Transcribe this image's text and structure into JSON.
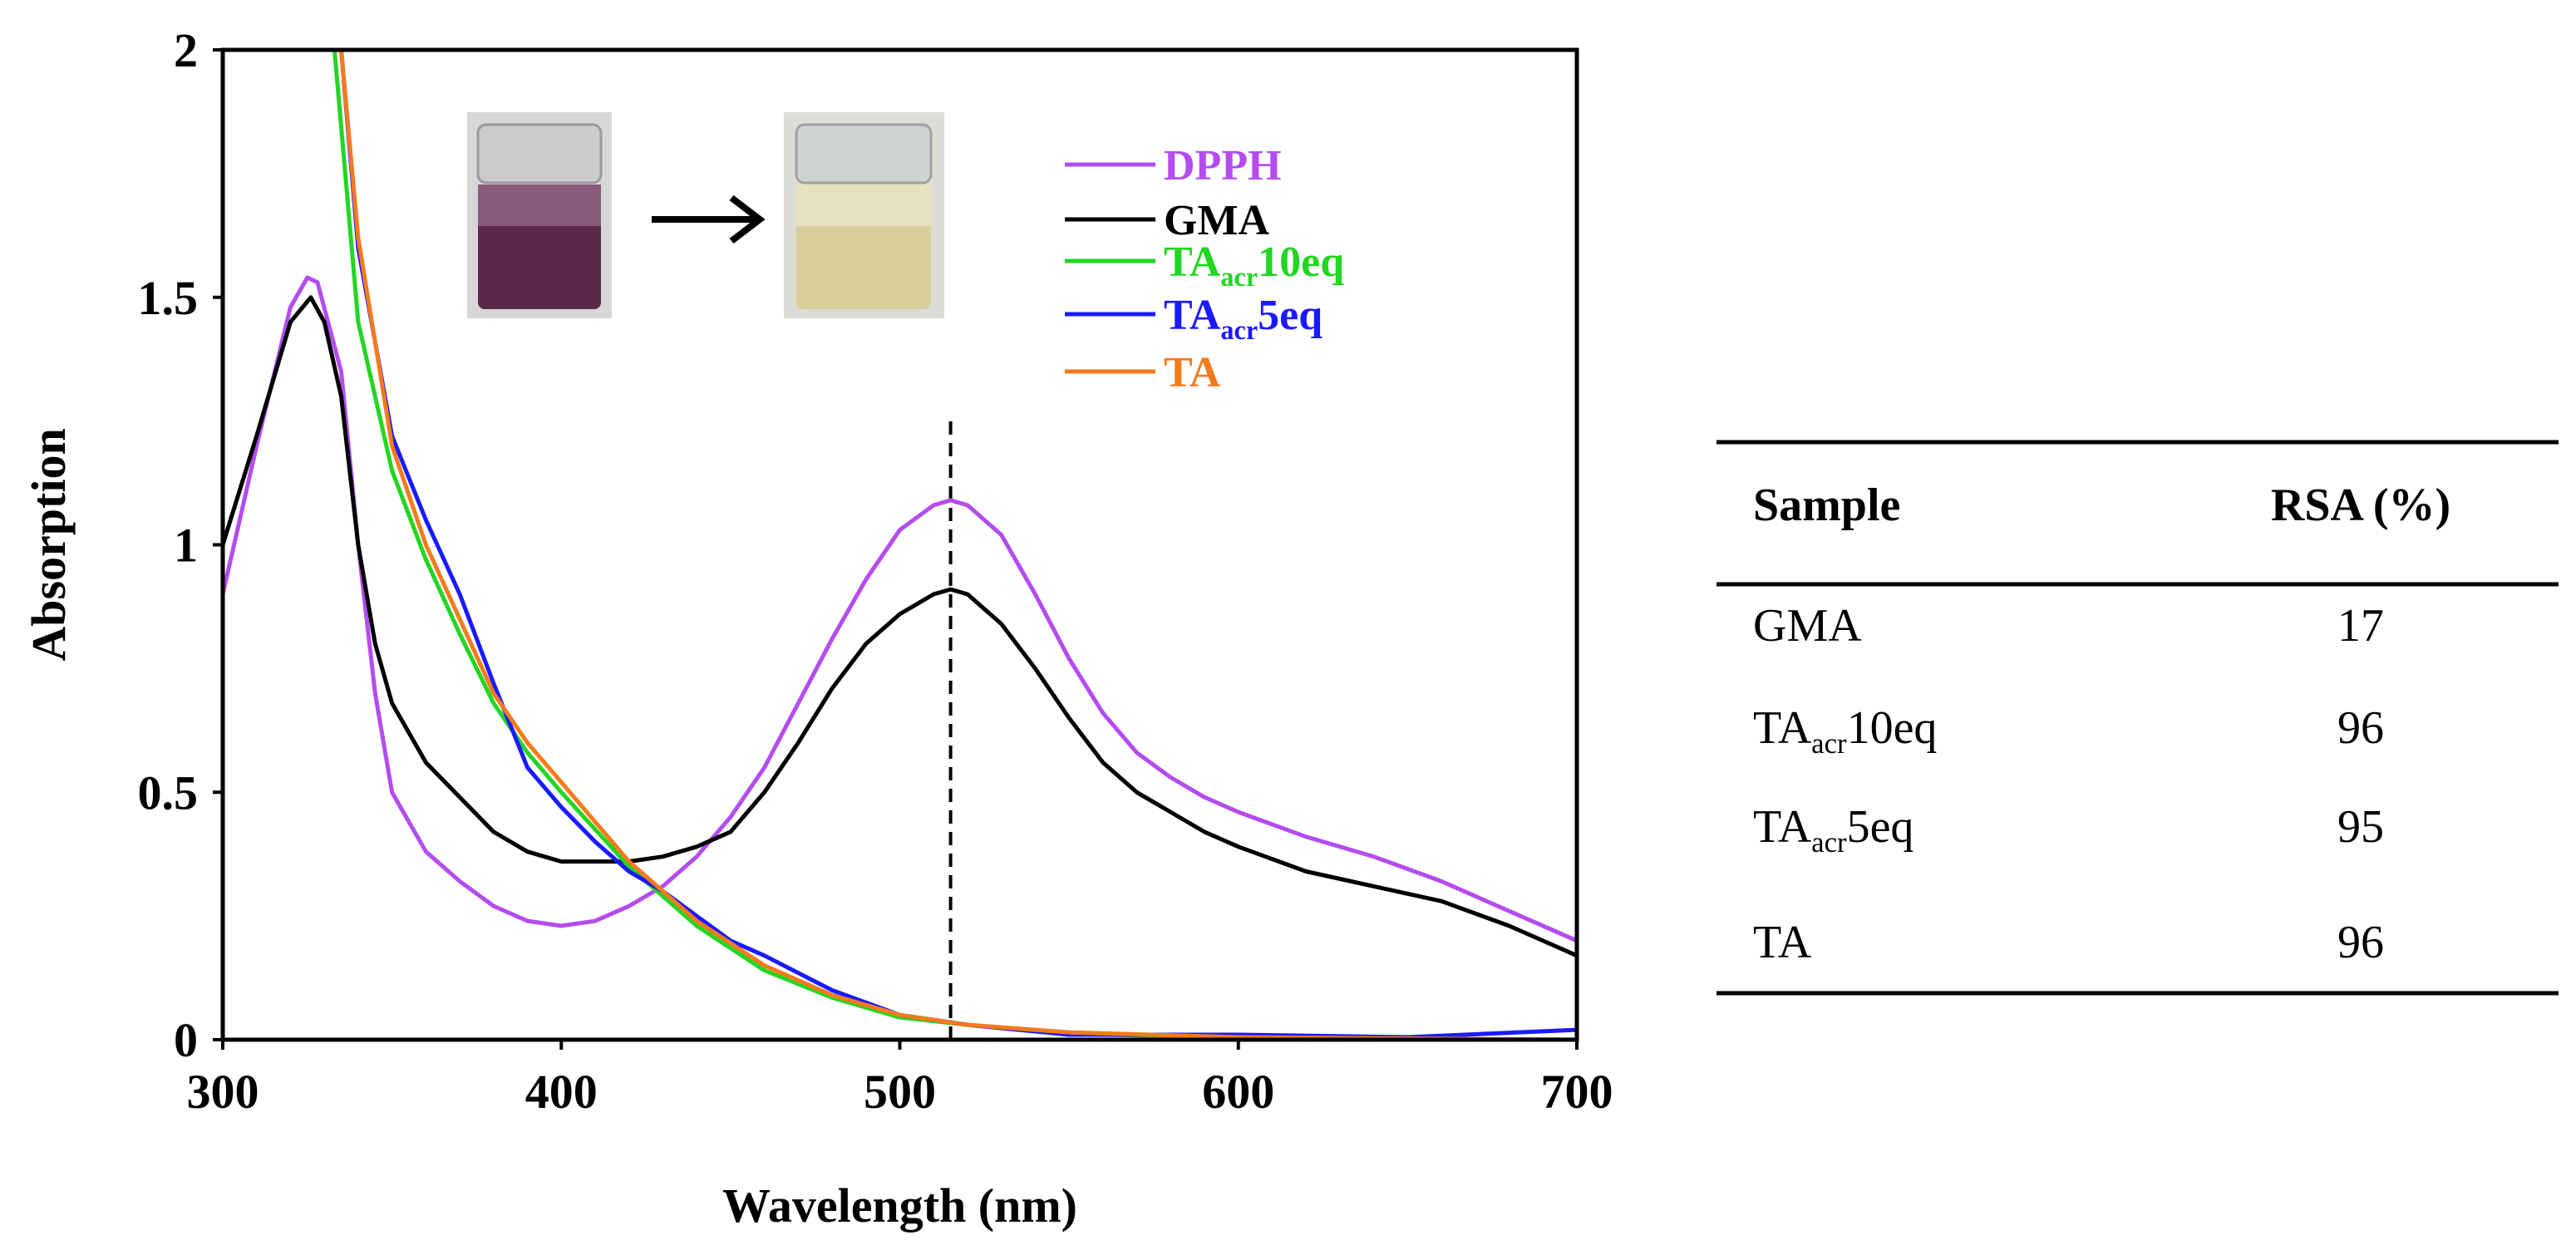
{
  "chart_data": {
    "type": "line",
    "xlabel": "Wavelength (nm)",
    "ylabel": "Absorption",
    "xlim": [
      300,
      700
    ],
    "ylim": [
      0,
      2
    ],
    "xticks": [
      "300",
      "400",
      "500",
      "600",
      "700"
    ],
    "yticks": [
      "0",
      "0.5",
      "1",
      "1.5",
      "2"
    ],
    "grid": false,
    "legend_position": "top-right",
    "reference_line": {
      "x": 515,
      "style": "dashed",
      "color": "#000000"
    },
    "series": [
      {
        "name": "DPPH",
        "label": {
          "main": "DPPH",
          "sub": "",
          "rest": ""
        },
        "color": "#b44cf0",
        "x": [
          300,
          310,
          320,
          325,
          328,
          335,
          340,
          345,
          350,
          360,
          370,
          380,
          390,
          400,
          410,
          420,
          430,
          440,
          450,
          460,
          470,
          480,
          490,
          500,
          510,
          515,
          520,
          530,
          540,
          550,
          560,
          570,
          580,
          590,
          600,
          620,
          640,
          660,
          680,
          700
        ],
        "y": [
          0.9,
          1.2,
          1.48,
          1.54,
          1.53,
          1.35,
          1.0,
          0.7,
          0.5,
          0.38,
          0.32,
          0.27,
          0.24,
          0.23,
          0.24,
          0.27,
          0.31,
          0.37,
          0.45,
          0.55,
          0.68,
          0.81,
          0.93,
          1.03,
          1.08,
          1.09,
          1.08,
          1.02,
          0.9,
          0.77,
          0.66,
          0.58,
          0.53,
          0.49,
          0.46,
          0.41,
          0.37,
          0.32,
          0.26,
          0.2
        ]
      },
      {
        "name": "GMA",
        "label": {
          "main": "GMA",
          "sub": "",
          "rest": ""
        },
        "color": "#000000",
        "x": [
          300,
          310,
          320,
          326,
          330,
          335,
          340,
          345,
          350,
          360,
          370,
          380,
          390,
          400,
          410,
          420,
          430,
          440,
          450,
          460,
          470,
          480,
          490,
          500,
          510,
          515,
          520,
          530,
          540,
          550,
          560,
          570,
          580,
          590,
          600,
          620,
          640,
          660,
          680,
          700
        ],
        "y": [
          1.0,
          1.22,
          1.45,
          1.5,
          1.45,
          1.3,
          1.0,
          0.8,
          0.68,
          0.56,
          0.49,
          0.42,
          0.38,
          0.36,
          0.36,
          0.36,
          0.37,
          0.39,
          0.42,
          0.5,
          0.6,
          0.71,
          0.8,
          0.86,
          0.9,
          0.91,
          0.9,
          0.84,
          0.75,
          0.65,
          0.56,
          0.5,
          0.46,
          0.42,
          0.39,
          0.34,
          0.31,
          0.28,
          0.23,
          0.17
        ]
      },
      {
        "name": "TAacr10eq",
        "label": {
          "main": "TA",
          "sub": "acr",
          "rest": "10eq"
        },
        "color": "#22d622",
        "x": [
          333,
          340,
          350,
          360,
          370,
          380,
          390,
          400,
          420,
          440,
          460,
          480,
          500,
          520,
          550,
          600,
          700
        ],
        "y": [
          2.0,
          1.45,
          1.15,
          0.97,
          0.82,
          0.68,
          0.58,
          0.5,
          0.35,
          0.23,
          0.14,
          0.085,
          0.045,
          0.03,
          0.012,
          0.004,
          0.0
        ]
      },
      {
        "name": "TAacr5eq",
        "label": {
          "main": "TA",
          "sub": "acr",
          "rest": "5eq"
        },
        "color": "#1a1aff",
        "x": [
          335,
          340,
          350,
          360,
          370,
          380,
          390,
          400,
          410,
          420,
          430,
          440,
          450,
          460,
          480,
          500,
          520,
          550,
          600,
          650,
          700
        ],
        "y": [
          2.0,
          1.6,
          1.22,
          1.05,
          0.9,
          0.72,
          0.55,
          0.47,
          0.4,
          0.34,
          0.3,
          0.25,
          0.2,
          0.17,
          0.1,
          0.05,
          0.03,
          0.01,
          0.01,
          0.005,
          0.02
        ]
      },
      {
        "name": "TA",
        "label": {
          "main": "TA",
          "sub": "",
          "rest": ""
        },
        "color": "#f57a1c",
        "x": [
          335,
          340,
          350,
          360,
          370,
          380,
          390,
          400,
          420,
          440,
          460,
          480,
          500,
          520,
          550,
          600,
          700
        ],
        "y": [
          2.0,
          1.62,
          1.2,
          1.0,
          0.85,
          0.7,
          0.6,
          0.52,
          0.36,
          0.24,
          0.15,
          0.09,
          0.05,
          0.03,
          0.015,
          0.005,
          0.0
        ]
      }
    ]
  },
  "table": {
    "headers": [
      "Sample",
      "RSA (%)"
    ],
    "rows": [
      {
        "sample": {
          "main": "GMA",
          "sub": "",
          "rest": ""
        },
        "rsa": "17"
      },
      {
        "sample": {
          "main": "TA",
          "sub": "acr",
          "rest": "10eq"
        },
        "rsa": "96"
      },
      {
        "sample": {
          "main": "TA",
          "sub": "acr",
          "rest": "5eq"
        },
        "rsa": "95"
      },
      {
        "sample": {
          "main": "TA",
          "sub": "",
          "rest": ""
        },
        "rsa": "96"
      }
    ]
  },
  "inset": {
    "vial_before": "purple DPPH solution vial",
    "vial_after": "yellow solution vial"
  }
}
